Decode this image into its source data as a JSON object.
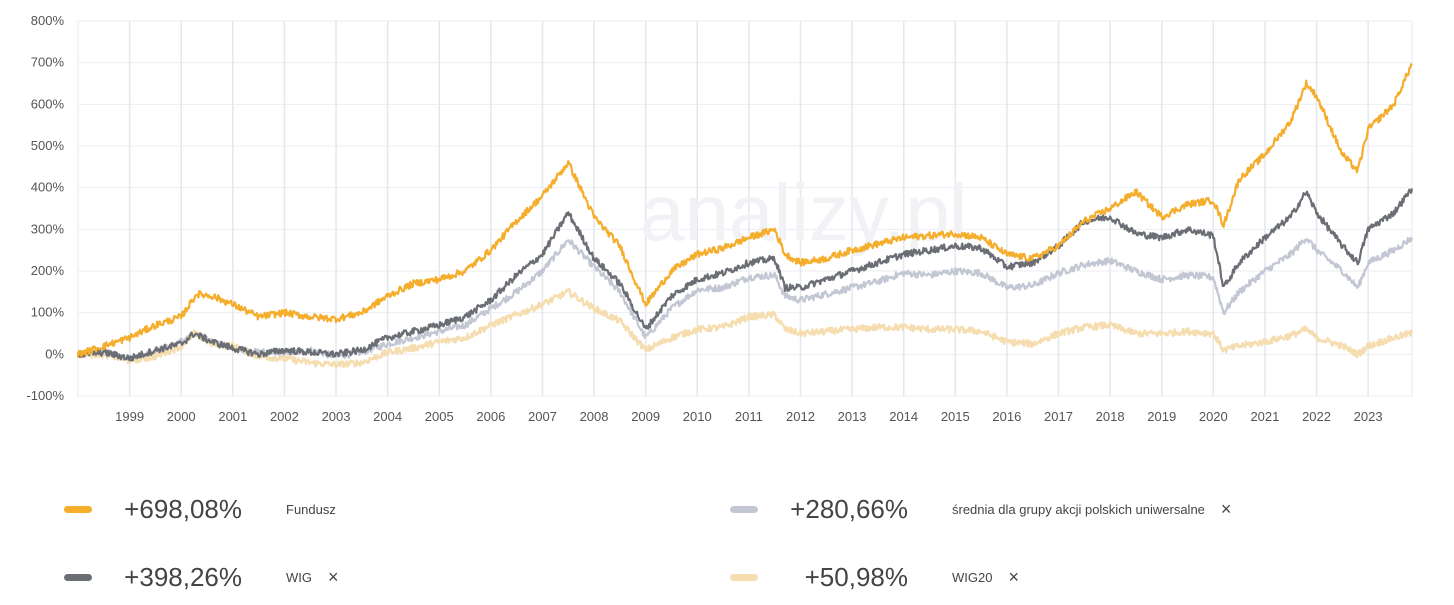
{
  "chart_data": {
    "type": "line",
    "y_ticks": [
      "800%",
      "700%",
      "600%",
      "500%",
      "400%",
      "300%",
      "200%",
      "100%",
      "0%",
      "-100%"
    ],
    "ylim": [
      -100,
      800
    ],
    "x_ticks": [
      "1999",
      "2000",
      "2001",
      "2002",
      "2003",
      "2004",
      "2005",
      "2006",
      "2007",
      "2008",
      "2009",
      "2010",
      "2011",
      "2012",
      "2013",
      "2014",
      "2015",
      "2016",
      "2017",
      "2018",
      "2019",
      "2020",
      "2021",
      "2022",
      "2023"
    ],
    "xlim": [
      1998.0,
      2023.85
    ],
    "watermark": "analizy.pl",
    "series": [
      {
        "name": "średnia dla grupy akcji polskich uniwersalne",
        "color": "#c2c7d3",
        "points": [
          [
            1998,
            0
          ],
          [
            1998.5,
            5
          ],
          [
            1999,
            -10
          ],
          [
            1999.5,
            5
          ],
          [
            2000,
            30
          ],
          [
            2000.25,
            50
          ],
          [
            2000.6,
            30
          ],
          [
            2001,
            15
          ],
          [
            2001.5,
            5
          ],
          [
            2002,
            0
          ],
          [
            2002.5,
            10
          ],
          [
            2003,
            -5
          ],
          [
            2003.5,
            5
          ],
          [
            2004,
            25
          ],
          [
            2004.5,
            40
          ],
          [
            2005,
            55
          ],
          [
            2005.5,
            70
          ],
          [
            2006,
            110
          ],
          [
            2006.5,
            150
          ],
          [
            2007,
            200
          ],
          [
            2007.5,
            275
          ],
          [
            2008,
            210
          ],
          [
            2008.5,
            150
          ],
          [
            2009,
            40
          ],
          [
            2009.5,
            110
          ],
          [
            2010,
            155
          ],
          [
            2010.5,
            160
          ],
          [
            2011,
            185
          ],
          [
            2011.5,
            190
          ],
          [
            2011.7,
            140
          ],
          [
            2012,
            130
          ],
          [
            2012.5,
            145
          ],
          [
            2013,
            160
          ],
          [
            2013.5,
            175
          ],
          [
            2014,
            195
          ],
          [
            2014.5,
            190
          ],
          [
            2015,
            200
          ],
          [
            2015.5,
            195
          ],
          [
            2016,
            160
          ],
          [
            2016.5,
            165
          ],
          [
            2017,
            195
          ],
          [
            2017.5,
            215
          ],
          [
            2018,
            225
          ],
          [
            2018.5,
            200
          ],
          [
            2019,
            180
          ],
          [
            2019.5,
            190
          ],
          [
            2020,
            185
          ],
          [
            2020.2,
            100
          ],
          [
            2020.5,
            150
          ],
          [
            2021,
            200
          ],
          [
            2021.5,
            240
          ],
          [
            2021.8,
            280
          ],
          [
            2022,
            250
          ],
          [
            2022.5,
            200
          ],
          [
            2022.8,
            160
          ],
          [
            2023,
            220
          ],
          [
            2023.5,
            250
          ],
          [
            2023.85,
            280
          ]
        ]
      },
      {
        "name": "WIG20",
        "color": "#f5ddb0",
        "points": [
          [
            1998,
            0
          ],
          [
            1998.5,
            0
          ],
          [
            1999,
            -15
          ],
          [
            1999.5,
            -5
          ],
          [
            2000,
            20
          ],
          [
            2000.25,
            50
          ],
          [
            2000.6,
            25
          ],
          [
            2001,
            20
          ],
          [
            2001.5,
            -5
          ],
          [
            2002,
            -10
          ],
          [
            2002.5,
            -20
          ],
          [
            2003,
            -25
          ],
          [
            2003.5,
            -20
          ],
          [
            2004,
            5
          ],
          [
            2004.5,
            15
          ],
          [
            2005,
            30
          ],
          [
            2005.5,
            40
          ],
          [
            2006,
            70
          ],
          [
            2006.5,
            95
          ],
          [
            2007,
            120
          ],
          [
            2007.5,
            150
          ],
          [
            2008,
            110
          ],
          [
            2008.5,
            80
          ],
          [
            2009,
            10
          ],
          [
            2009.5,
            40
          ],
          [
            2010,
            60
          ],
          [
            2010.5,
            65
          ],
          [
            2011,
            90
          ],
          [
            2011.5,
            95
          ],
          [
            2011.7,
            60
          ],
          [
            2012,
            50
          ],
          [
            2012.5,
            55
          ],
          [
            2013,
            60
          ],
          [
            2013.5,
            65
          ],
          [
            2014,
            65
          ],
          [
            2014.5,
            60
          ],
          [
            2015,
            60
          ],
          [
            2015.5,
            55
          ],
          [
            2016,
            30
          ],
          [
            2016.5,
            25
          ],
          [
            2017,
            50
          ],
          [
            2017.5,
            65
          ],
          [
            2018,
            70
          ],
          [
            2018.5,
            50
          ],
          [
            2019,
            50
          ],
          [
            2019.5,
            55
          ],
          [
            2020,
            50
          ],
          [
            2020.2,
            10
          ],
          [
            2020.5,
            20
          ],
          [
            2021,
            30
          ],
          [
            2021.5,
            45
          ],
          [
            2021.8,
            60
          ],
          [
            2022,
            40
          ],
          [
            2022.5,
            20
          ],
          [
            2022.8,
            0
          ],
          [
            2023,
            20
          ],
          [
            2023.5,
            40
          ],
          [
            2023.85,
            51
          ]
        ]
      },
      {
        "name": "WIG",
        "color": "#6b6e74",
        "points": [
          [
            1998,
            0
          ],
          [
            1998.5,
            5
          ],
          [
            1999,
            -10
          ],
          [
            1999.5,
            10
          ],
          [
            2000,
            25
          ],
          [
            2000.25,
            50
          ],
          [
            2000.6,
            30
          ],
          [
            2001,
            15
          ],
          [
            2001.5,
            0
          ],
          [
            2002,
            10
          ],
          [
            2002.5,
            5
          ],
          [
            2003,
            0
          ],
          [
            2003.5,
            10
          ],
          [
            2004,
            40
          ],
          [
            2004.5,
            55
          ],
          [
            2005,
            70
          ],
          [
            2005.5,
            90
          ],
          [
            2006,
            130
          ],
          [
            2006.5,
            190
          ],
          [
            2007,
            240
          ],
          [
            2007.5,
            340
          ],
          [
            2008,
            230
          ],
          [
            2008.5,
            170
          ],
          [
            2009,
            60
          ],
          [
            2009.5,
            140
          ],
          [
            2010,
            180
          ],
          [
            2010.5,
            195
          ],
          [
            2011,
            220
          ],
          [
            2011.5,
            230
          ],
          [
            2011.7,
            160
          ],
          [
            2012,
            160
          ],
          [
            2012.5,
            180
          ],
          [
            2013,
            200
          ],
          [
            2013.5,
            220
          ],
          [
            2014,
            240
          ],
          [
            2014.5,
            250
          ],
          [
            2015,
            260
          ],
          [
            2015.5,
            255
          ],
          [
            2016,
            210
          ],
          [
            2016.5,
            220
          ],
          [
            2017,
            260
          ],
          [
            2017.5,
            320
          ],
          [
            2018,
            330
          ],
          [
            2018.5,
            290
          ],
          [
            2019,
            280
          ],
          [
            2019.5,
            300
          ],
          [
            2020,
            285
          ],
          [
            2020.2,
            160
          ],
          [
            2020.5,
            220
          ],
          [
            2021,
            280
          ],
          [
            2021.5,
            330
          ],
          [
            2021.8,
            390
          ],
          [
            2022,
            340
          ],
          [
            2022.5,
            260
          ],
          [
            2022.8,
            220
          ],
          [
            2023,
            300
          ],
          [
            2023.5,
            340
          ],
          [
            2023.85,
            398
          ]
        ]
      },
      {
        "name": "Fundusz",
        "color": "#f5ad2c",
        "points": [
          [
            1998,
            0
          ],
          [
            1998.5,
            20
          ],
          [
            1999,
            40
          ],
          [
            1999.5,
            70
          ],
          [
            2000,
            90
          ],
          [
            2000.3,
            145
          ],
          [
            2000.6,
            140
          ],
          [
            2001,
            120
          ],
          [
            2001.5,
            90
          ],
          [
            2002,
            100
          ],
          [
            2002.5,
            90
          ],
          [
            2003,
            85
          ],
          [
            2003.5,
            100
          ],
          [
            2004,
            140
          ],
          [
            2004.5,
            170
          ],
          [
            2005,
            180
          ],
          [
            2005.5,
            200
          ],
          [
            2006,
            250
          ],
          [
            2006.5,
            320
          ],
          [
            2007,
            380
          ],
          [
            2007.5,
            460
          ],
          [
            2008,
            330
          ],
          [
            2008.5,
            260
          ],
          [
            2009,
            120
          ],
          [
            2009.5,
            200
          ],
          [
            2010,
            240
          ],
          [
            2010.5,
            255
          ],
          [
            2011,
            280
          ],
          [
            2011.5,
            300
          ],
          [
            2011.7,
            240
          ],
          [
            2012,
            220
          ],
          [
            2012.5,
            230
          ],
          [
            2013,
            250
          ],
          [
            2013.5,
            265
          ],
          [
            2014,
            280
          ],
          [
            2014.5,
            285
          ],
          [
            2015,
            290
          ],
          [
            2015.5,
            280
          ],
          [
            2016,
            240
          ],
          [
            2016.5,
            230
          ],
          [
            2017,
            260
          ],
          [
            2017.5,
            320
          ],
          [
            2018,
            350
          ],
          [
            2018.5,
            390
          ],
          [
            2019,
            330
          ],
          [
            2019.5,
            360
          ],
          [
            2020,
            370
          ],
          [
            2020.2,
            310
          ],
          [
            2020.5,
            420
          ],
          [
            2021,
            480
          ],
          [
            2021.5,
            560
          ],
          [
            2021.8,
            650
          ],
          [
            2022,
            620
          ],
          [
            2022.5,
            480
          ],
          [
            2022.8,
            440
          ],
          [
            2023,
            540
          ],
          [
            2023.5,
            600
          ],
          [
            2023.85,
            698
          ]
        ]
      }
    ]
  },
  "legend": [
    {
      "pct": "+698,08%",
      "name": "Fundusz",
      "color": "#f5ad2c",
      "closable": false
    },
    {
      "pct": "+280,66%",
      "name": "średnia dla grupy akcji polskich uniwersalne",
      "color": "#c2c7d3",
      "closable": true
    },
    {
      "pct": "+398,26%",
      "name": "WIG",
      "color": "#6b6e74",
      "closable": true
    },
    {
      "pct": "+50,98%",
      "name": "WIG20",
      "color": "#f5ddb0",
      "closable": true
    }
  ],
  "close_glyph": "×"
}
